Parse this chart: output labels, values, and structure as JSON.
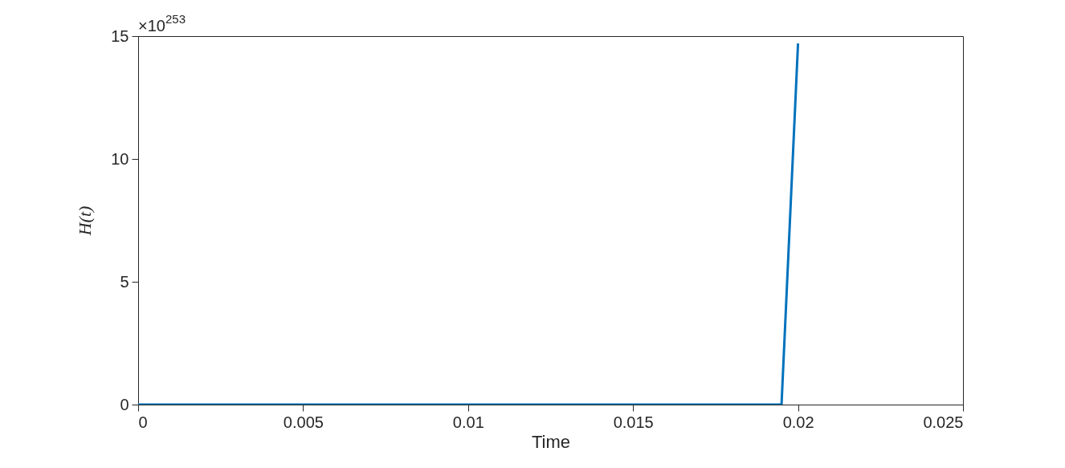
{
  "chart_data": {
    "type": "line",
    "xlabel": "Time",
    "ylabel": "H(t)",
    "x": [
      0,
      0.0195,
      0.02
    ],
    "series": [
      {
        "color": "#0072bd",
        "values": [
          0,
          0,
          14.7
        ]
      }
    ],
    "xlim": [
      0,
      0.025
    ],
    "xticks": [
      0,
      0.005,
      0.01,
      0.015,
      0.02,
      0.025
    ],
    "ylim": [
      0,
      15
    ],
    "yticks": [
      0,
      5,
      10,
      15
    ],
    "annotations": [
      "×10$^{253}$"
    ],
    "grid": false,
    "marker": "none",
    "line_style": "solid"
  }
}
